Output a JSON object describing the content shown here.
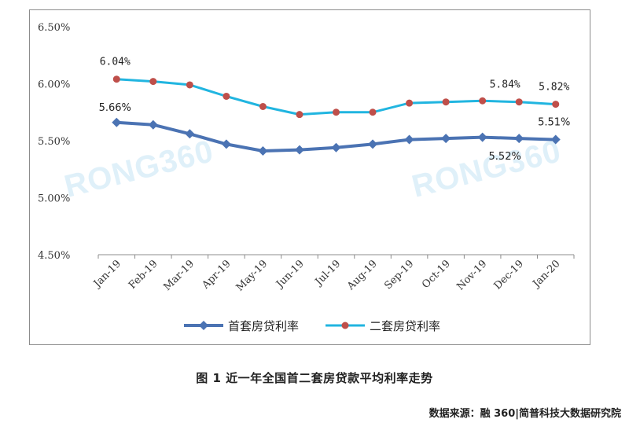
{
  "caption": "图 1  近一年全国首二套房贷款平均利率走势",
  "source": "数据来源：融 360|简普科技大数据研究院",
  "watermark": [
    "RONG360",
    "RONG360"
  ],
  "colors": {
    "series1": "#4b73b3",
    "series2": "#21b5e0",
    "marker2": "#bf4f4a",
    "axis": "#8c8c8c"
  },
  "chart_data": {
    "type": "line",
    "title": "",
    "xlabel": "",
    "ylabel": "",
    "ylim": [
      4.5,
      6.5
    ],
    "yticks": [
      "6.50%",
      "6.00%",
      "5.50%",
      "5.00%",
      "4.50%"
    ],
    "ytick_values": [
      6.5,
      6.0,
      5.5,
      5.0,
      4.5
    ],
    "categories": [
      "Jan-19",
      "Feb-19",
      "Mar-19",
      "Apr-19",
      "May-19",
      "Jun-19",
      "Jul-19",
      "Aug-19",
      "Sep-19",
      "Oct-19",
      "Nov-19",
      "Dec-19",
      "Jan-20"
    ],
    "series": [
      {
        "name": "首套房贷利率",
        "marker": "diamond",
        "values": [
          5.66,
          5.64,
          5.56,
          5.47,
          5.41,
          5.42,
          5.44,
          5.47,
          5.51,
          5.52,
          5.53,
          5.52,
          5.51
        ]
      },
      {
        "name": "二套房贷利率",
        "marker": "circle",
        "values": [
          6.04,
          6.02,
          5.99,
          5.89,
          5.8,
          5.73,
          5.75,
          5.75,
          5.83,
          5.84,
          5.85,
          5.84,
          5.82
        ]
      }
    ],
    "data_labels": [
      {
        "text": "5.66%",
        "series": 0,
        "index": 0
      },
      {
        "text": "5.52%",
        "series": 0,
        "index": 11
      },
      {
        "text": "5.51%",
        "series": 0,
        "index": 12
      },
      {
        "text": "6.04%",
        "series": 1,
        "index": 0
      },
      {
        "text": "5.84%",
        "series": 1,
        "index": 11
      },
      {
        "text": "5.82%",
        "series": 1,
        "index": 12
      }
    ],
    "legend_position": "bottom",
    "grid": false
  }
}
